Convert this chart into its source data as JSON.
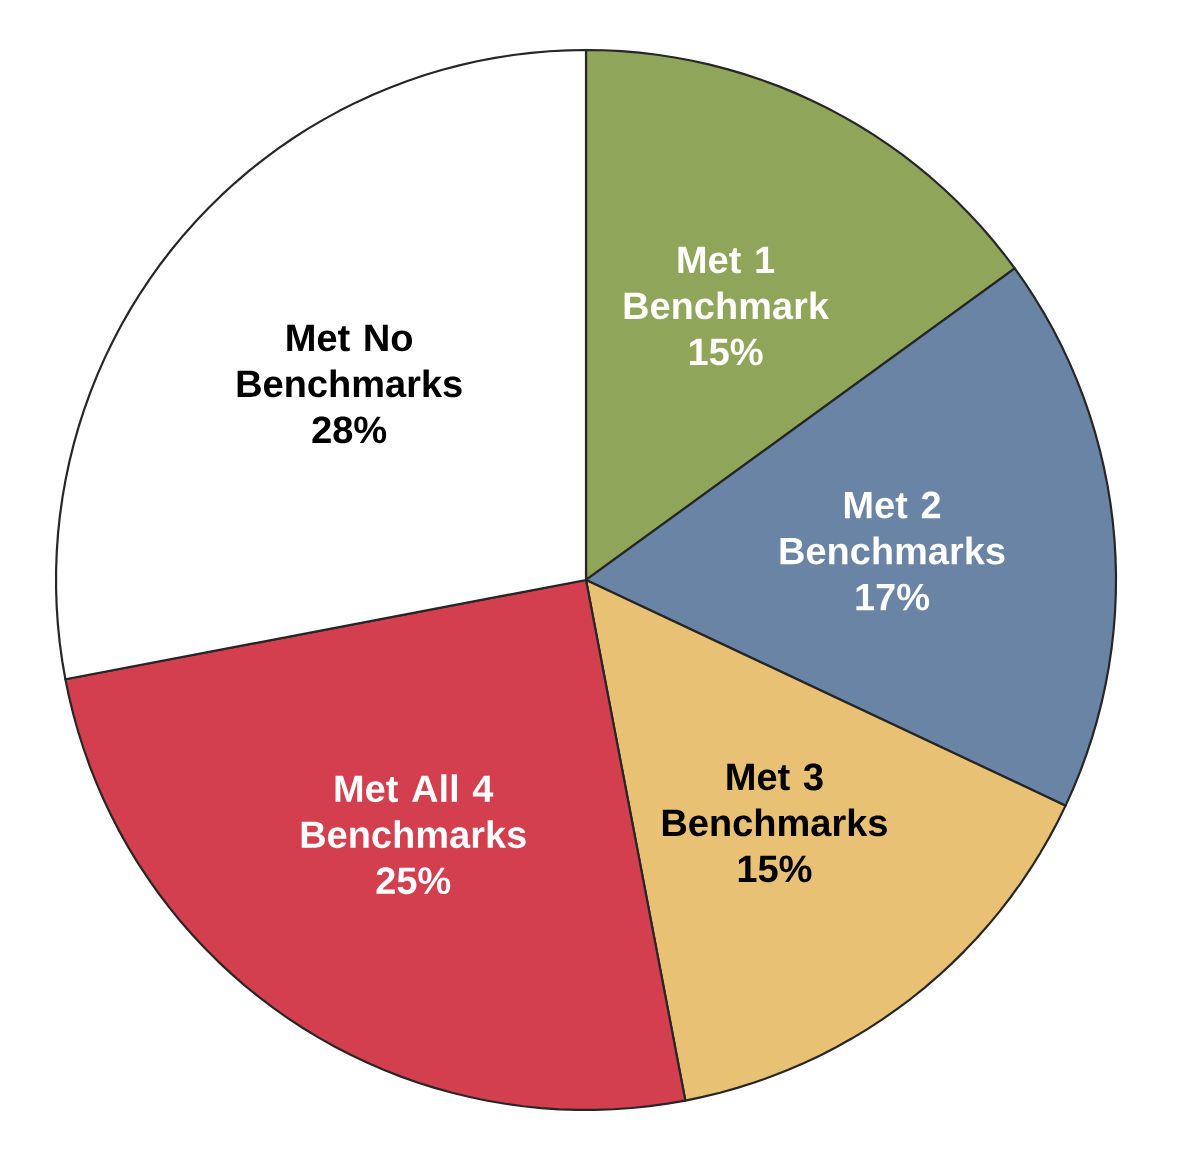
{
  "chart_data": {
    "type": "pie",
    "categories": [
      "Met 1 Benchmark",
      "Met 2 Benchmarks",
      "Met 3 Benchmarks",
      "Met All 4 Benchmarks",
      "Met No Benchmarks"
    ],
    "values": [
      15,
      17,
      15,
      25,
      28
    ],
    "colors": [
      "#8fa65a",
      "#6a84a5",
      "#e8c175",
      "#d43f50",
      "#ffffff"
    ],
    "value_labels": [
      "15%",
      "17%",
      "15%",
      "25%",
      "28%"
    ]
  }
}
